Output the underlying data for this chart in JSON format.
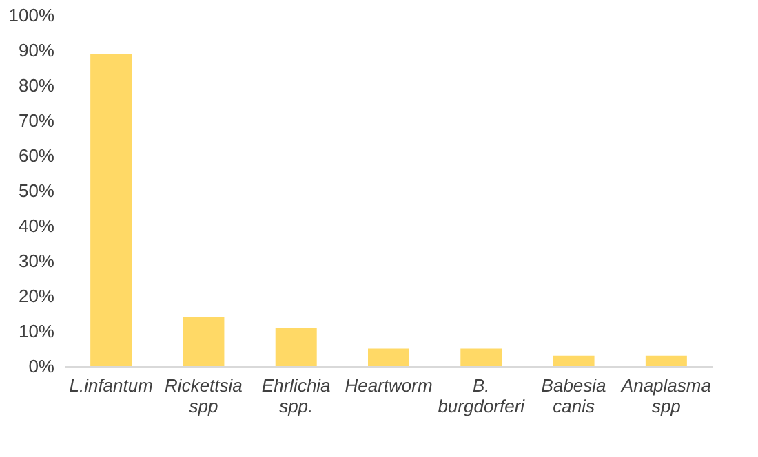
{
  "chart_data": {
    "type": "bar",
    "categories": [
      "L.infantum",
      "Rickettsia spp",
      "Ehrlichia spp.",
      "Heartworm",
      "B. burgdorferi",
      "Babesia canis",
      "Anaplasma spp"
    ],
    "values": [
      89,
      14,
      11,
      5,
      5,
      3,
      3
    ],
    "color": "#ffd966",
    "ylim": [
      0,
      100
    ],
    "yticks": [
      {
        "value": 0,
        "label": "0%"
      },
      {
        "value": 10,
        "label": "10%"
      },
      {
        "value": 20,
        "label": "20%"
      },
      {
        "value": 30,
        "label": "30%"
      },
      {
        "value": 40,
        "label": "40%"
      },
      {
        "value": 50,
        "label": "50%"
      },
      {
        "value": 60,
        "label": "60%"
      },
      {
        "value": 70,
        "label": "70%"
      },
      {
        "value": 80,
        "label": "80%"
      },
      {
        "value": 90,
        "label": "90%"
      },
      {
        "value": 100,
        "label": "100%"
      }
    ],
    "grid": false
  }
}
